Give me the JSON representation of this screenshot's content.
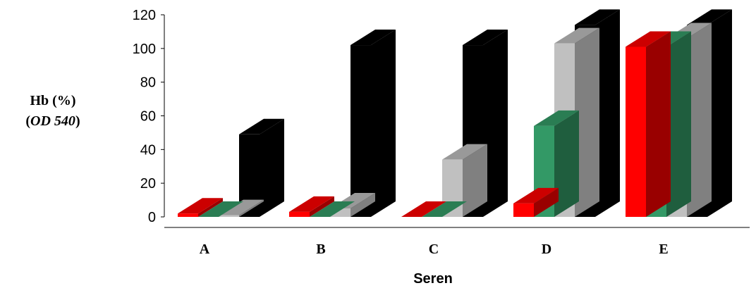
{
  "chart_data": {
    "type": "bar",
    "xlabel": "Seren",
    "ylabel_line1": "Hb (%)",
    "ylabel_line2_prefix": "(",
    "ylabel_line2_italic": "OD 540",
    "ylabel_line2_suffix": ")",
    "ylim": [
      0,
      120
    ],
    "yticks": [
      "0",
      "20",
      "40",
      "60",
      "80",
      "100",
      "120"
    ],
    "categories": [
      "A",
      "B",
      "C",
      "D",
      "E"
    ],
    "series": [
      {
        "values": [
          2,
          3,
          0,
          8,
          101
        ]
      },
      {
        "values": [
          0,
          0,
          0,
          54,
          101
        ]
      },
      {
        "values": [
          1,
          5,
          34,
          103,
          106
        ]
      },
      {
        "values": [
          49,
          102,
          102,
          114,
          114
        ]
      }
    ],
    "colors": {
      "s1": {
        "front": "#ff0000",
        "top": "#cc0000",
        "side": "#990000"
      },
      "s2": {
        "front": "#339966",
        "top": "#2a7d53",
        "side": "#1f5e3e"
      },
      "s3": {
        "front": "#c0c0c0",
        "top": "#999999",
        "side": "#808080"
      },
      "s4": {
        "front": "#000000",
        "top": "#000000",
        "side": "#000000"
      }
    },
    "grid": false,
    "legend": "none"
  }
}
